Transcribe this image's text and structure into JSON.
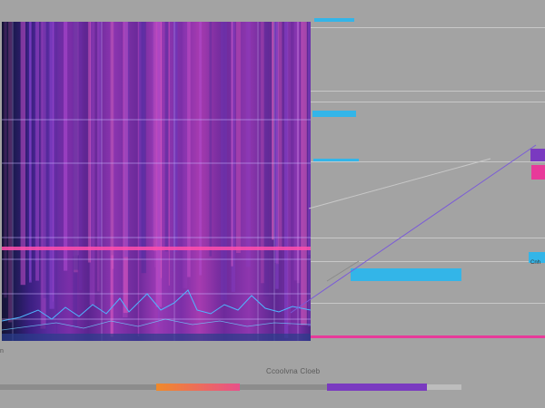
{
  "caption": "Ccoolvna Cloeb",
  "side_label": "n",
  "tag_right": "Cnh",
  "colors": {
    "background": "#a3a3a3",
    "accent_cyan": "#33b5e8",
    "accent_purple": "#7a3ac0",
    "accent_pink": "#e83a9a",
    "accent_orange": "#f08a2a"
  }
}
